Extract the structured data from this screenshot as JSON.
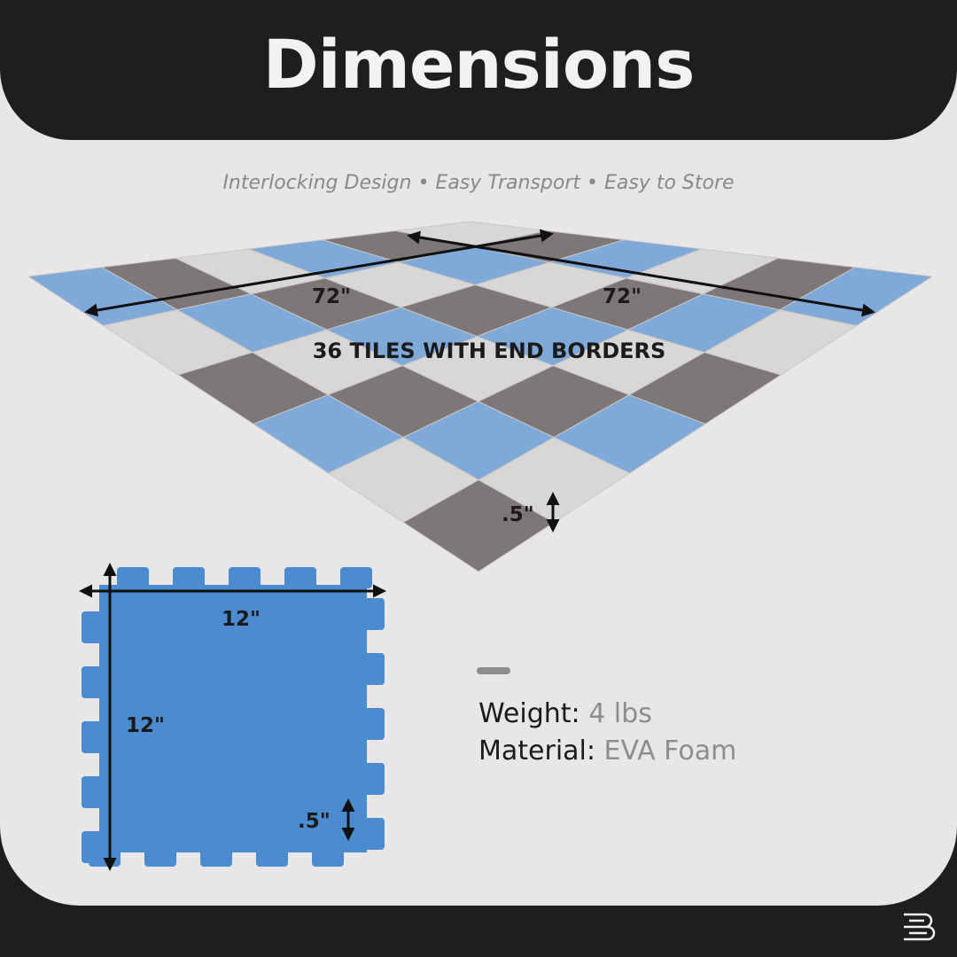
{
  "title": "Dimensions",
  "subtitle": "Interlocking Design • Easy Transport • Easy to Store",
  "floor": {
    "width_label": "72\"",
    "length_label": "72\"",
    "caption": "36 TILES WITH END BORDERS",
    "thickness_label": ".5\"",
    "colors": {
      "blue": "#7fa9d9",
      "gray": "#7d7877",
      "light": "#d9d7d6"
    }
  },
  "tile": {
    "width_label": "12\"",
    "height_label": "12\"",
    "thickness_label": ".5\"",
    "color": "#4b8cd1"
  },
  "specs": [
    {
      "key": "Weight",
      "value": "4 lbs"
    },
    {
      "key": "Material",
      "value": "EVA Foam"
    }
  ],
  "brand_logo": "B"
}
